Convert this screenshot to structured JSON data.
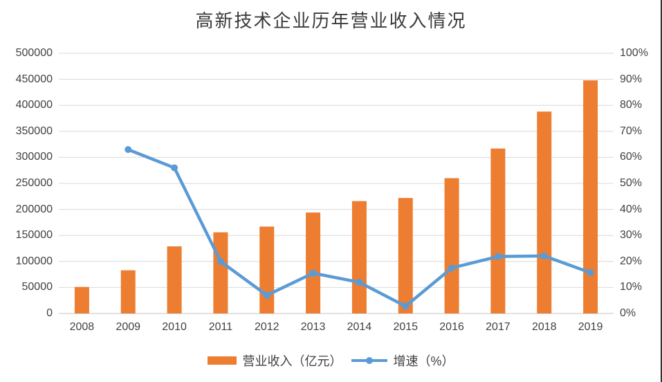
{
  "colors": {
    "bar": "#ED7D31",
    "line": "#5B9BD5",
    "gridline": "#D9D9D9",
    "axis_line": "#C6C6C6",
    "axis_text": "#404040",
    "title_text": "#3B3B3B",
    "right_border": "#333333",
    "background": "#FFFFFF"
  },
  "legend": {
    "revenue_label": "营业收入（亿元）",
    "growth_label": "增速（%）"
  },
  "chart_data": {
    "type": "bar",
    "subtype": "combo-bar-line-dual-axis",
    "title": "高新技术企业历年营业收入情况",
    "categories": [
      "2008",
      "2009",
      "2010",
      "2011",
      "2012",
      "2013",
      "2014",
      "2015",
      "2016",
      "2017",
      "2018",
      "2019"
    ],
    "series": [
      {
        "name": "营业收入（亿元）",
        "type": "bar",
        "axis": "left",
        "color": "#ED7D31",
        "values": [
          51000,
          83000,
          129000,
          156000,
          167000,
          194000,
          216000,
          222000,
          260000,
          317000,
          388000,
          448000
        ]
      },
      {
        "name": "增速（%）",
        "type": "line",
        "axis": "right",
        "color": "#5B9BD5",
        "values": [
          null,
          63,
          56,
          20,
          7,
          15.5,
          12,
          2.8,
          17.5,
          21.9,
          22.1,
          15.7
        ]
      }
    ],
    "left_axis": {
      "min": 0,
      "max": 500000,
      "step": 50000,
      "ticks": [
        "0",
        "50000",
        "100000",
        "150000",
        "200000",
        "250000",
        "300000",
        "350000",
        "400000",
        "450000",
        "500000"
      ]
    },
    "right_axis": {
      "min": 0,
      "max": 100,
      "step": 10,
      "ticks": [
        "0%",
        "10%",
        "20%",
        "30%",
        "40%",
        "50%",
        "60%",
        "70%",
        "80%",
        "90%",
        "100%"
      ]
    },
    "grid": true,
    "legend_position": "bottom",
    "xlabel": "",
    "ylabel_left": "",
    "ylabel_right": ""
  }
}
